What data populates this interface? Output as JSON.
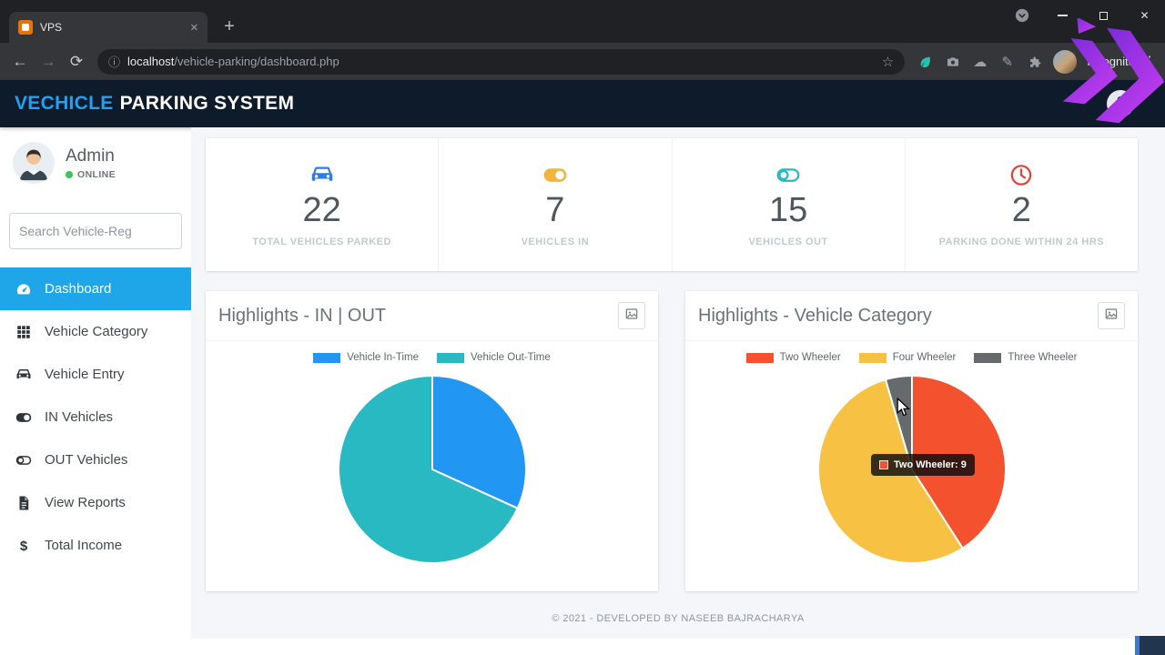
{
  "browser": {
    "tab_title": "VPS",
    "new_tab_button": "+",
    "url": {
      "host": "localhost",
      "path": "/vehicle-parking/dashboard.php"
    },
    "profile_label": "Incognito"
  },
  "app_header": {
    "brand_primary": "VECHICLE",
    "brand_secondary": "PARKING SYSTEM"
  },
  "sidebar": {
    "user_name": "Admin",
    "user_status": "ONLINE",
    "search_placeholder": "Search Vehicle-Reg",
    "items": [
      {
        "label": "Dashboard",
        "icon": "tachometer-icon",
        "active": true
      },
      {
        "label": "Vehicle Category",
        "icon": "grid-icon",
        "active": false
      },
      {
        "label": "Vehicle Entry",
        "icon": "car-icon",
        "active": false
      },
      {
        "label": "IN Vehicles",
        "icon": "toggle-on-icon",
        "active": false
      },
      {
        "label": "OUT Vehicles",
        "icon": "toggle-off-icon",
        "active": false
      },
      {
        "label": "View Reports",
        "icon": "file-icon",
        "active": false
      },
      {
        "label": "Total Income",
        "icon": "dollar-icon",
        "active": false
      }
    ]
  },
  "stats": [
    {
      "value": "22",
      "label": "TOTAL VEHICLES PARKED",
      "icon": "car-icon",
      "color": "#2e7ce4"
    },
    {
      "value": "7",
      "label": "VEHICLES IN",
      "icon": "toggle-on-icon",
      "color": "#f2b53c"
    },
    {
      "value": "15",
      "label": "VEHICLES OUT",
      "icon": "toggle-off-icon",
      "color": "#28b8c0"
    },
    {
      "value": "2",
      "label": "PARKING DONE WITHIN 24 HRS",
      "icon": "clock-icon",
      "color": "#e04638"
    }
  ],
  "chart_data": [
    {
      "type": "pie",
      "title": "Highlights - IN | OUT",
      "labels": [
        "Vehicle In-Time",
        "Vehicle Out-Time"
      ],
      "values": [
        7,
        15
      ],
      "colors": [
        "#2196f3",
        "#28b9c2"
      ],
      "legend_position": "top",
      "start_angle_deg": -90,
      "direction": "clockwise"
    },
    {
      "type": "pie",
      "title": "Highlights - Vehicle Category",
      "labels": [
        "Two Wheeler",
        "Four Wheeler",
        "Three Wheeler"
      ],
      "values": [
        9,
        12,
        1
      ],
      "colors": [
        "#f4512e",
        "#f7c244",
        "#666a6c"
      ],
      "legend_position": "top",
      "start_angle_deg": -90,
      "direction": "clockwise",
      "tooltip": {
        "label": "Two Wheeler",
        "value": 9,
        "text": "Two Wheeler: 9"
      }
    }
  ],
  "footer": {
    "copyright": "© 2021 - DEVELOPED BY NASEEB BAJRACHARYA"
  }
}
